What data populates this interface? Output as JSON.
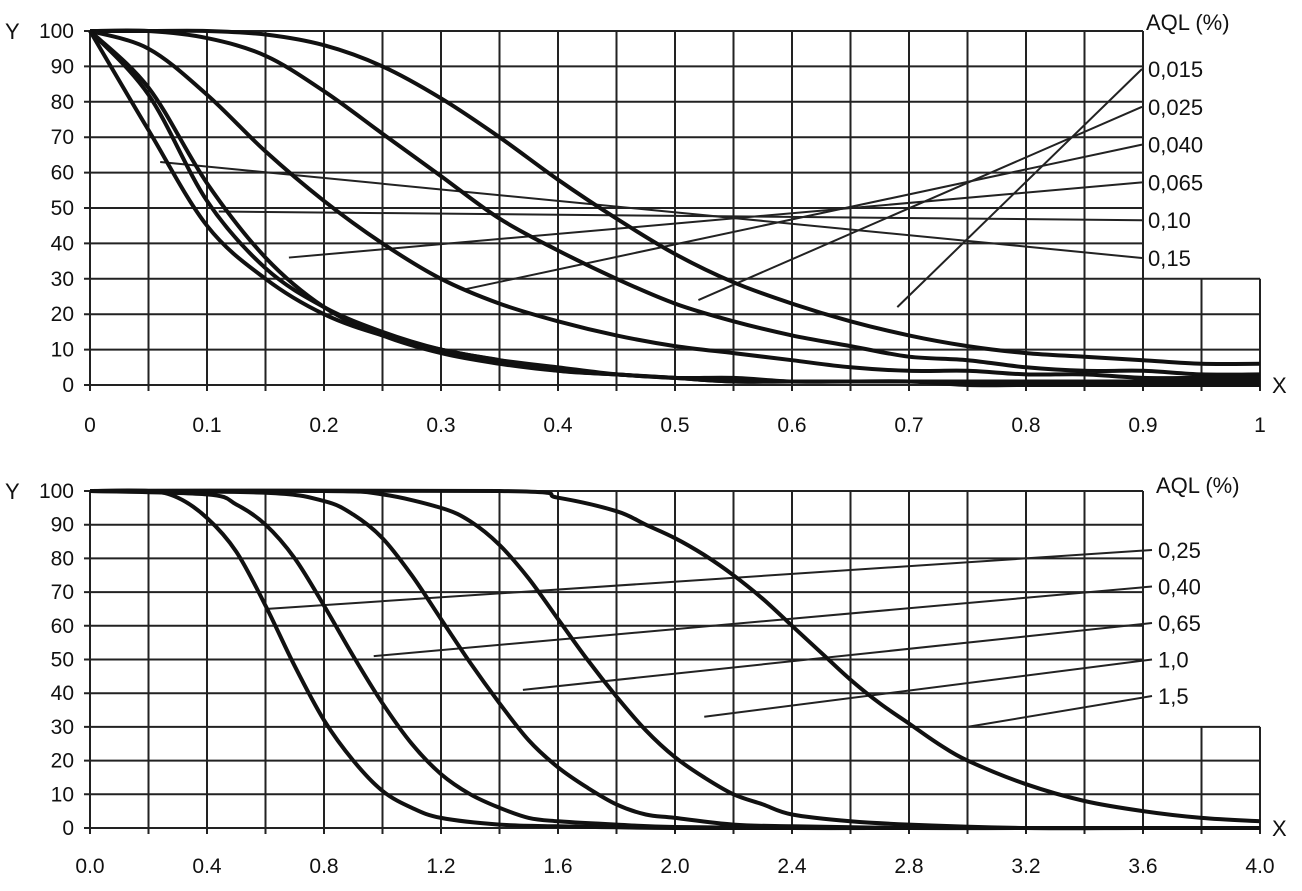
{
  "chart_data": [
    {
      "type": "line",
      "title": "",
      "xlabel": "X",
      "ylabel": "Y",
      "legend_title": "AQL (%)",
      "xlim": [
        0,
        1
      ],
      "ylim": [
        0,
        100
      ],
      "grid": true,
      "legend_position": "right",
      "x_ticks": [
        "0",
        "0.1",
        "0.2",
        "0.3",
        "0.4",
        "0.5",
        "0.6",
        "0.7",
        "0.8",
        "0.9",
        "1"
      ],
      "y_ticks": [
        "100",
        "90",
        "80",
        "70",
        "60",
        "50",
        "40",
        "30",
        "20",
        "10",
        "0"
      ],
      "series": [
        {
          "name": "0,015",
          "x": [
            0,
            0.05,
            0.1,
            0.15,
            0.2,
            0.25,
            0.3,
            0.35,
            0.4,
            0.45,
            0.5,
            0.55,
            0.6,
            0.65,
            0.7,
            0.75,
            0.8,
            0.85,
            0.9,
            0.95,
            1.0
          ],
          "y": [
            100,
            100,
            100,
            99,
            96,
            90,
            81,
            70,
            58,
            47,
            37,
            29,
            23,
            18,
            14,
            11,
            9,
            8,
            7,
            6,
            6
          ],
          "label_anchor": [
            0.69,
            22
          ]
        },
        {
          "name": "0,025",
          "x": [
            0,
            0.05,
            0.1,
            0.15,
            0.2,
            0.25,
            0.3,
            0.35,
            0.4,
            0.45,
            0.5,
            0.55,
            0.6,
            0.65,
            0.7,
            0.75,
            0.8,
            0.85,
            0.9,
            0.95,
            1.0
          ],
          "y": [
            100,
            100,
            98,
            93,
            83,
            71,
            59,
            47,
            38,
            30,
            23,
            18,
            14,
            11,
            8,
            7,
            5,
            4,
            4,
            3,
            3
          ],
          "label_anchor": [
            0.52,
            24
          ]
        },
        {
          "name": "0,040",
          "x": [
            0,
            0.05,
            0.1,
            0.15,
            0.2,
            0.25,
            0.3,
            0.35,
            0.4,
            0.45,
            0.5,
            0.55,
            0.6,
            0.65,
            0.7,
            0.75,
            0.8,
            0.85,
            0.9,
            0.95,
            1.0
          ],
          "y": [
            100,
            95,
            82,
            66,
            52,
            40,
            30,
            23,
            18,
            14,
            11,
            9,
            7,
            5,
            4,
            4,
            3,
            3,
            2,
            2,
            2
          ],
          "label_anchor": [
            0.32,
            27
          ]
        },
        {
          "name": "0,065",
          "x": [
            0,
            0.05,
            0.1,
            0.15,
            0.2,
            0.25,
            0.3,
            0.35,
            0.4,
            0.45,
            0.5,
            0.55,
            0.6,
            0.65,
            0.7,
            0.75,
            0.8,
            0.85,
            0.9,
            0.95,
            1.0
          ],
          "y": [
            100,
            84,
            57,
            36,
            22,
            14,
            9,
            6,
            4,
            3,
            2,
            2,
            1,
            1,
            1,
            1,
            1,
            1,
            1,
            1,
            1
          ],
          "label_anchor": [
            0.17,
            36
          ]
        },
        {
          "name": "0,10",
          "x": [
            0,
            0.05,
            0.1,
            0.15,
            0.2,
            0.25,
            0.3,
            0.35,
            0.4,
            0.45,
            0.5,
            0.55,
            0.6,
            0.65,
            0.7,
            0.75,
            0.8,
            0.85,
            0.9,
            0.95,
            1.0
          ],
          "y": [
            100,
            82,
            52,
            33,
            22,
            15,
            10,
            7,
            4,
            3,
            2,
            1,
            1,
            1,
            1,
            1,
            1,
            1,
            1,
            1,
            1
          ],
          "label_anchor": [
            0.11,
            49
          ]
        },
        {
          "name": "0,15",
          "x": [
            0,
            0.05,
            0.1,
            0.15,
            0.2,
            0.25,
            0.3,
            0.35,
            0.4,
            0.45,
            0.5,
            0.55,
            0.6,
            0.65,
            0.7,
            0.75,
            0.8,
            0.85,
            0.9,
            0.95,
            1.0
          ],
          "y": [
            100,
            72,
            45,
            30,
            20,
            14,
            10,
            7,
            5,
            3,
            2,
            1,
            1,
            1,
            1,
            0,
            0,
            0,
            0,
            0,
            0
          ],
          "label_anchor": [
            0.06,
            63
          ]
        }
      ]
    },
    {
      "type": "line",
      "title": "",
      "xlabel": "X",
      "ylabel": "Y",
      "legend_title": "AQL (%)",
      "xlim": [
        0,
        4
      ],
      "ylim": [
        0,
        100
      ],
      "grid": true,
      "legend_position": "right",
      "x_ticks": [
        "0.0",
        "0.4",
        "0.8",
        "1.2",
        "1.6",
        "2.0",
        "2.4",
        "2.8",
        "3.2",
        "3.6",
        "4.0"
      ],
      "y_ticks": [
        "100",
        "90",
        "80",
        "70",
        "60",
        "50",
        "40",
        "30",
        "20",
        "10",
        "0"
      ],
      "series": [
        {
          "name": "0,25",
          "x": [
            0,
            0.2,
            0.3,
            0.4,
            0.5,
            0.6,
            0.7,
            0.8,
            0.9,
            1.0,
            1.1,
            1.2,
            1.4,
            1.6,
            1.8,
            2.0,
            2.4,
            2.8,
            3.2,
            3.6,
            4.0
          ],
          "y": [
            100,
            100,
            98,
            92,
            82,
            66,
            48,
            32,
            20,
            11,
            6,
            3,
            1,
            0.5,
            0.2,
            0,
            0,
            0,
            0,
            0,
            0
          ],
          "label_anchor": [
            0.6,
            65
          ]
        },
        {
          "name": "0,40",
          "x": [
            0,
            0.4,
            0.5,
            0.6,
            0.7,
            0.8,
            0.9,
            1.0,
            1.1,
            1.2,
            1.3,
            1.4,
            1.5,
            1.6,
            1.8,
            2.0,
            2.4,
            2.8,
            3.2,
            3.6,
            4.0
          ],
          "y": [
            100,
            99,
            96,
            90,
            80,
            66,
            51,
            37,
            25,
            16,
            10,
            6,
            3,
            2,
            1,
            0.3,
            0,
            0,
            0,
            0,
            0
          ],
          "label_anchor": [
            0.97,
            51
          ]
        },
        {
          "name": "0,65",
          "x": [
            0,
            0.6,
            0.8,
            0.9,
            1.0,
            1.1,
            1.2,
            1.3,
            1.4,
            1.5,
            1.6,
            1.7,
            1.8,
            1.9,
            2.0,
            2.2,
            2.4,
            2.8,
            3.2,
            3.6,
            4.0
          ],
          "y": [
            100,
            99.5,
            97,
            93,
            86,
            75,
            62,
            49,
            37,
            26,
            18,
            12,
            7,
            4,
            3,
            1,
            0.5,
            0,
            0,
            0,
            0
          ],
          "label_anchor": [
            1.48,
            41
          ]
        },
        {
          "name": "1,0",
          "x": [
            0,
            0.8,
            1.0,
            1.2,
            1.3,
            1.4,
            1.5,
            1.6,
            1.7,
            1.8,
            1.9,
            2.0,
            2.1,
            2.2,
            2.3,
            2.4,
            2.6,
            2.8,
            3.2,
            3.6,
            4.0
          ],
          "y": [
            100,
            100,
            99,
            95,
            91,
            84,
            74,
            62,
            50,
            39,
            29,
            21,
            15,
            10,
            7,
            4,
            2,
            1,
            0,
            0,
            0
          ],
          "label_anchor": [
            2.1,
            33
          ]
        },
        {
          "name": "1,5",
          "x": [
            0,
            1.4,
            1.6,
            1.8,
            1.9,
            2.0,
            2.1,
            2.2,
            2.3,
            2.4,
            2.5,
            2.6,
            2.7,
            2.8,
            2.9,
            3.0,
            3.2,
            3.4,
            3.6,
            3.8,
            4.0
          ],
          "y": [
            100,
            100,
            98,
            94,
            90,
            86,
            81,
            75,
            68,
            60,
            52,
            44,
            37,
            31,
            25,
            20,
            13,
            8,
            5,
            3,
            2
          ],
          "label_anchor": [
            3.0,
            30
          ]
        }
      ]
    }
  ]
}
